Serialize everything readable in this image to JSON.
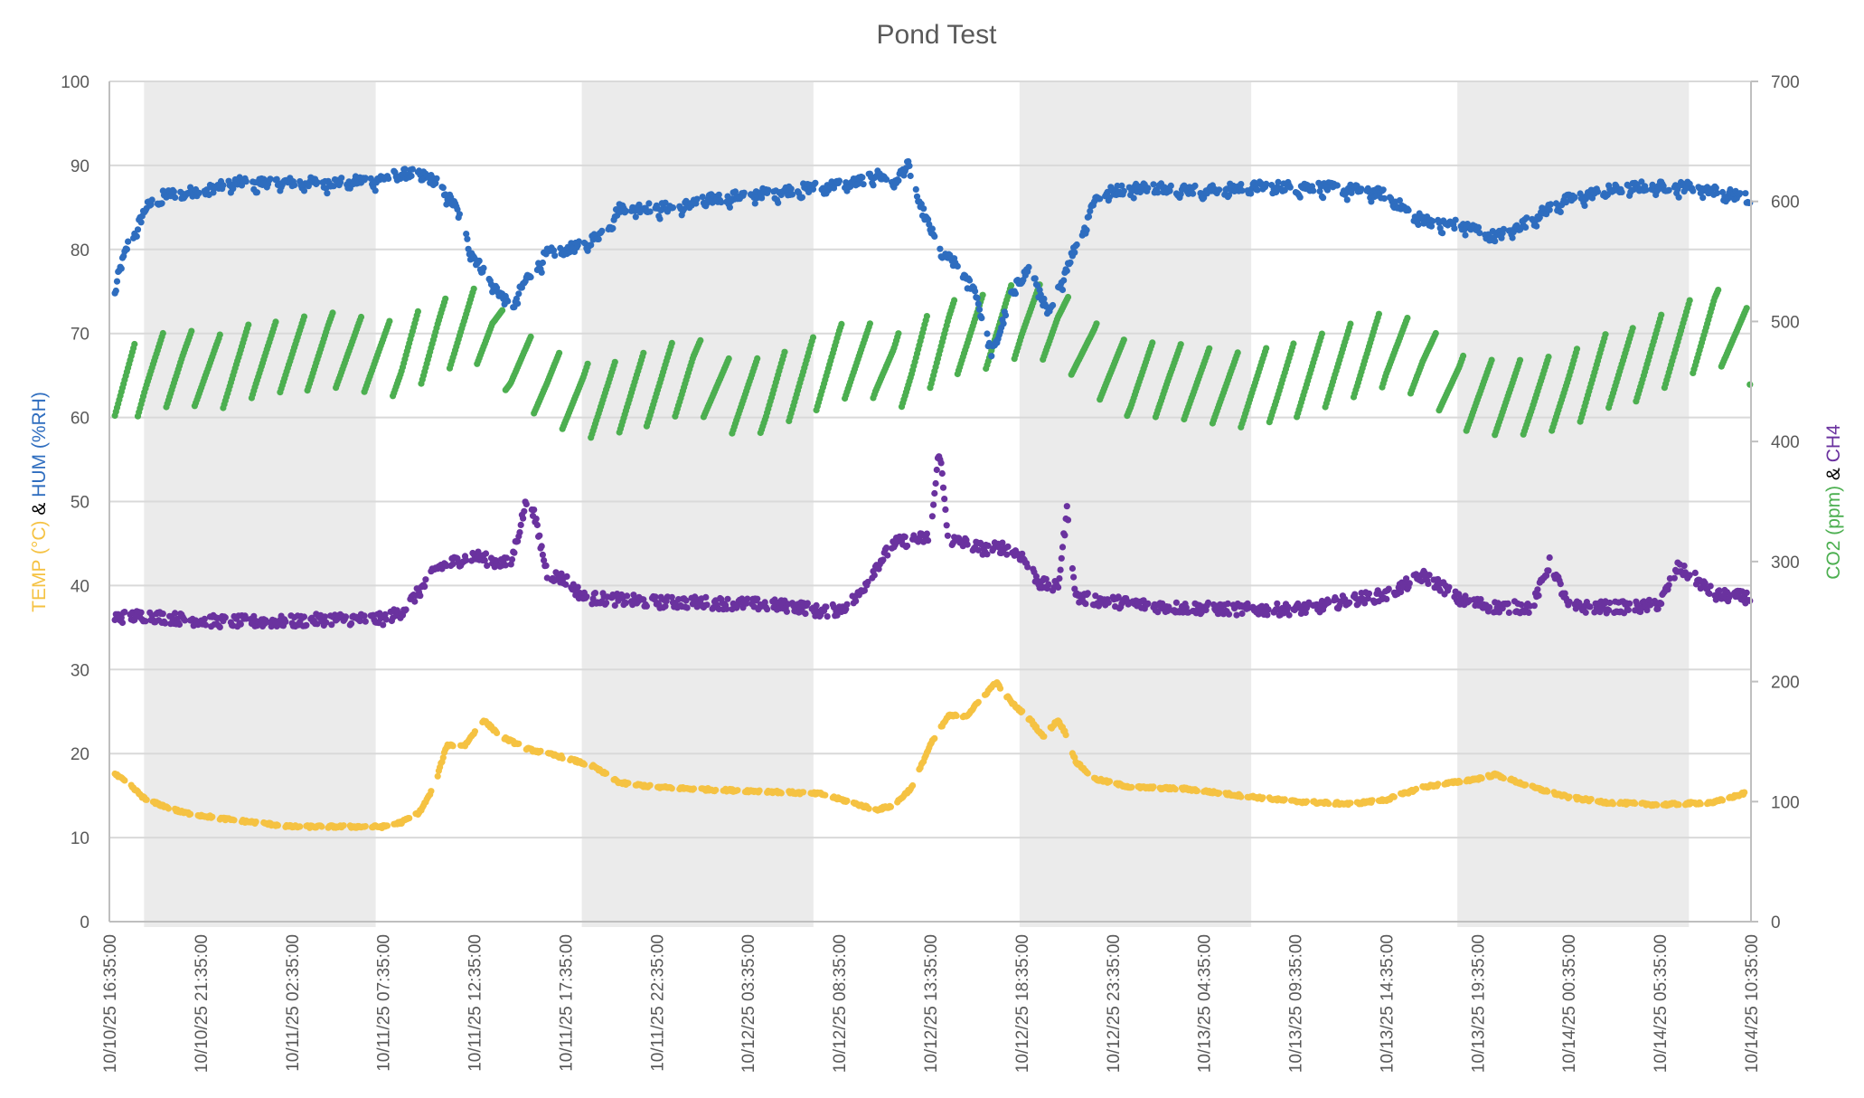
{
  "chart_data": {
    "type": "scatter",
    "title": "Pond Test",
    "xlabel": "",
    "x_unit": "hours since 10/10/25 16:35:00",
    "x_range": [
      0,
      90
    ],
    "x_tick_labels": [
      "10/10/25 16:35:00",
      "10/10/25 21:35:00",
      "10/11/25 02:35:00",
      "10/11/25 07:35:00",
      "10/11/25 12:35:00",
      "10/11/25 17:35:00",
      "10/11/25 22:35:00",
      "10/12/25 03:35:00",
      "10/12/25 08:35:00",
      "10/12/25 13:35:00",
      "10/12/25 18:35:00",
      "10/12/25 23:35:00",
      "10/13/25 04:35:00",
      "10/13/25 09:35:00",
      "10/13/25 14:35:00",
      "10/13/25 19:35:00",
      "10/14/25 00:35:00",
      "10/14/25 05:35:00",
      "10/14/25 10:35:00"
    ],
    "x_tick_step_hours": 5,
    "left_axis": {
      "title_parts": [
        {
          "text": "TEMP (°C)",
          "color": "#F5C242"
        },
        {
          "text": " & ",
          "color": "#000000"
        },
        {
          "text": "HUM (%RH)",
          "color": "#2E6DBF"
        }
      ],
      "range": [
        0,
        100
      ],
      "ticks": [
        0,
        10,
        20,
        30,
        40,
        50,
        60,
        70,
        80,
        90,
        100
      ]
    },
    "right_axis": {
      "title_parts": [
        {
          "text": "CO2 (ppm)",
          "color": "#4CAF50"
        },
        {
          "text": " & ",
          "color": "#000000"
        },
        {
          "text": "CH4",
          "color": "#6A329F"
        }
      ],
      "range": [
        0,
        700
      ],
      "ticks": [
        0,
        100,
        200,
        300,
        400,
        500,
        600,
        700
      ]
    },
    "grid": true,
    "night_bands_hours": [
      [
        1.9,
        14.6
      ],
      [
        25.9,
        38.6
      ],
      [
        49.9,
        62.6
      ],
      [
        73.9,
        86.6
      ]
    ],
    "series": [
      {
        "name": "TEMP (°C)",
        "axis": "left",
        "color": "#F5C242",
        "points": [
          [
            0,
            18
          ],
          [
            1,
            16.5
          ],
          [
            2,
            14.5
          ],
          [
            4,
            13
          ],
          [
            6,
            12.3
          ],
          [
            8,
            11.8
          ],
          [
            10,
            11.3
          ],
          [
            12,
            11.3
          ],
          [
            14,
            11.3
          ],
          [
            15,
            11.3
          ],
          [
            16,
            11.8
          ],
          [
            17,
            13
          ],
          [
            17.8,
            16
          ],
          [
            18.5,
            21
          ],
          [
            19.5,
            21
          ],
          [
            20.5,
            24
          ],
          [
            21.5,
            22
          ],
          [
            23,
            20.5
          ],
          [
            25,
            19.5
          ],
          [
            26.5,
            18.5
          ],
          [
            28,
            16.5
          ],
          [
            30,
            16
          ],
          [
            33,
            15.7
          ],
          [
            36,
            15.5
          ],
          [
            39,
            15.2
          ],
          [
            40.5,
            14.3
          ],
          [
            42,
            13.3
          ],
          [
            43,
            13.8
          ],
          [
            44,
            16
          ],
          [
            45,
            21
          ],
          [
            46,
            24.5
          ],
          [
            47,
            24.5
          ],
          [
            48,
            27
          ],
          [
            48.6,
            28.5
          ],
          [
            49.5,
            26
          ],
          [
            50.5,
            24
          ],
          [
            51.2,
            22
          ],
          [
            52,
            24
          ],
          [
            52.4,
            22.5
          ],
          [
            53,
            19
          ],
          [
            54,
            17
          ],
          [
            56,
            16
          ],
          [
            59,
            15.8
          ],
          [
            62,
            15
          ],
          [
            65,
            14.3
          ],
          [
            68,
            14
          ],
          [
            70,
            14.5
          ],
          [
            72,
            16
          ],
          [
            75,
            17
          ],
          [
            76,
            17.5
          ],
          [
            78,
            16
          ],
          [
            80,
            14.8
          ],
          [
            82,
            14.2
          ],
          [
            85,
            13.9
          ],
          [
            88,
            14.2
          ],
          [
            90,
            15.5
          ]
        ]
      },
      {
        "name": "HUM (%RH)",
        "axis": "left",
        "color": "#2E6DBF",
        "points": [
          [
            0,
            71
          ],
          [
            0.5,
            77
          ],
          [
            1,
            80.5
          ],
          [
            1.5,
            82.5
          ],
          [
            2,
            85
          ],
          [
            3,
            86.5
          ],
          [
            5,
            87
          ],
          [
            7,
            88
          ],
          [
            9,
            88
          ],
          [
            11,
            88
          ],
          [
            13,
            88
          ],
          [
            15,
            88.5
          ],
          [
            16,
            89
          ],
          [
            17,
            89
          ],
          [
            18,
            88
          ],
          [
            19,
            85
          ],
          [
            20,
            79
          ],
          [
            21,
            76
          ],
          [
            22,
            73
          ],
          [
            23,
            77
          ],
          [
            24,
            79.5
          ],
          [
            25,
            80
          ],
          [
            26,
            80.5
          ],
          [
            27,
            82
          ],
          [
            28,
            85
          ],
          [
            29,
            85
          ],
          [
            31,
            85
          ],
          [
            33,
            86
          ],
          [
            35,
            86.5
          ],
          [
            37,
            87
          ],
          [
            39,
            87.5
          ],
          [
            41,
            88
          ],
          [
            42,
            89
          ],
          [
            43,
            88
          ],
          [
            43.8,
            90
          ],
          [
            44.5,
            85
          ],
          [
            45.5,
            80
          ],
          [
            46.5,
            78
          ],
          [
            47.5,
            75
          ],
          [
            48,
            70
          ],
          [
            48.5,
            68
          ],
          [
            49.5,
            75
          ],
          [
            50.5,
            78
          ],
          [
            51.5,
            72
          ],
          [
            52.5,
            78
          ],
          [
            53.5,
            83
          ],
          [
            54,
            86
          ],
          [
            55,
            87
          ],
          [
            57,
            87.5
          ],
          [
            60,
            87
          ],
          [
            63,
            87.5
          ],
          [
            66,
            87.5
          ],
          [
            69,
            87
          ],
          [
            70,
            86.5
          ],
          [
            71.5,
            84
          ],
          [
            73,
            83
          ],
          [
            74,
            83
          ],
          [
            75.5,
            82
          ],
          [
            76,
            81.5
          ],
          [
            77.5,
            83
          ],
          [
            79,
            85
          ],
          [
            80,
            86
          ],
          [
            81,
            86.5
          ],
          [
            82,
            87
          ],
          [
            84,
            87.5
          ],
          [
            87,
            87.5
          ],
          [
            88,
            87
          ],
          [
            90,
            86
          ]
        ]
      },
      {
        "name": "CO2 (ppm)",
        "axis": "right",
        "color": "#4CAF50",
        "sawtooth": true,
        "points": [
          [
            0,
            440
          ],
          [
            2,
            460
          ],
          [
            4,
            465
          ],
          [
            6,
            460
          ],
          [
            8,
            470
          ],
          [
            10,
            475
          ],
          [
            12,
            480
          ],
          [
            14,
            475
          ],
          [
            16,
            470
          ],
          [
            18,
            490
          ],
          [
            20,
            500
          ],
          [
            21,
            495
          ],
          [
            22,
            470
          ],
          [
            24,
            450
          ],
          [
            26,
            435
          ],
          [
            28,
            440
          ],
          [
            30,
            450
          ],
          [
            32,
            460
          ],
          [
            34,
            440
          ],
          [
            36,
            440
          ],
          [
            38,
            455
          ],
          [
            40,
            470
          ],
          [
            42,
            470
          ],
          [
            43,
            460
          ],
          [
            44,
            465
          ],
          [
            46,
            490
          ],
          [
            48,
            495
          ],
          [
            50,
            505
          ],
          [
            52,
            500
          ],
          [
            54,
            470
          ],
          [
            56,
            455
          ],
          [
            58,
            455
          ],
          [
            60,
            450
          ],
          [
            62,
            445
          ],
          [
            64,
            450
          ],
          [
            66,
            460
          ],
          [
            68,
            470
          ],
          [
            70,
            480
          ],
          [
            72,
            470
          ],
          [
            74,
            445
          ],
          [
            76,
            440
          ],
          [
            78,
            440
          ],
          [
            80,
            445
          ],
          [
            82,
            460
          ],
          [
            84,
            470
          ],
          [
            86,
            485
          ],
          [
            88,
            500
          ],
          [
            90,
            480
          ]
        ],
        "sawtooth_amp_ppm": 70
      },
      {
        "name": "CH4",
        "axis": "right",
        "color": "#6A329F",
        "points": [
          [
            0,
            253
          ],
          [
            2,
            255
          ],
          [
            4,
            252
          ],
          [
            6,
            250
          ],
          [
            8,
            250
          ],
          [
            10,
            250
          ],
          [
            12,
            252
          ],
          [
            14,
            252
          ],
          [
            15,
            252
          ],
          [
            16,
            258
          ],
          [
            17,
            275
          ],
          [
            18,
            295
          ],
          [
            19,
            300
          ],
          [
            20,
            305
          ],
          [
            21,
            300
          ],
          [
            22,
            298
          ],
          [
            23,
            358
          ],
          [
            24,
            290
          ],
          [
            25,
            285
          ],
          [
            26,
            270
          ],
          [
            28,
            268
          ],
          [
            30,
            266
          ],
          [
            32,
            266
          ],
          [
            34,
            265
          ],
          [
            36,
            264
          ],
          [
            38,
            262
          ],
          [
            39,
            258
          ],
          [
            40,
            260
          ],
          [
            41,
            270
          ],
          [
            42,
            295
          ],
          [
            43,
            315
          ],
          [
            44,
            318
          ],
          [
            45,
            320
          ],
          [
            45.5,
            395
          ],
          [
            46,
            318
          ],
          [
            47,
            315
          ],
          [
            48,
            310
          ],
          [
            49,
            312
          ],
          [
            50,
            305
          ],
          [
            51,
            282
          ],
          [
            52,
            278
          ],
          [
            52.5,
            342
          ],
          [
            53,
            270
          ],
          [
            54,
            268
          ],
          [
            56,
            265
          ],
          [
            58,
            262
          ],
          [
            60,
            261
          ],
          [
            62,
            260
          ],
          [
            64,
            260
          ],
          [
            66,
            261
          ],
          [
            68,
            268
          ],
          [
            70,
            272
          ],
          [
            71,
            280
          ],
          [
            72,
            288
          ],
          [
            73,
            280
          ],
          [
            74,
            268
          ],
          [
            76,
            262
          ],
          [
            78,
            262
          ],
          [
            79,
            300
          ],
          [
            80,
            262
          ],
          [
            82,
            262
          ],
          [
            84,
            262
          ],
          [
            85,
            265
          ],
          [
            86,
            295
          ],
          [
            87,
            285
          ],
          [
            88,
            272
          ],
          [
            90,
            270
          ]
        ]
      }
    ]
  }
}
